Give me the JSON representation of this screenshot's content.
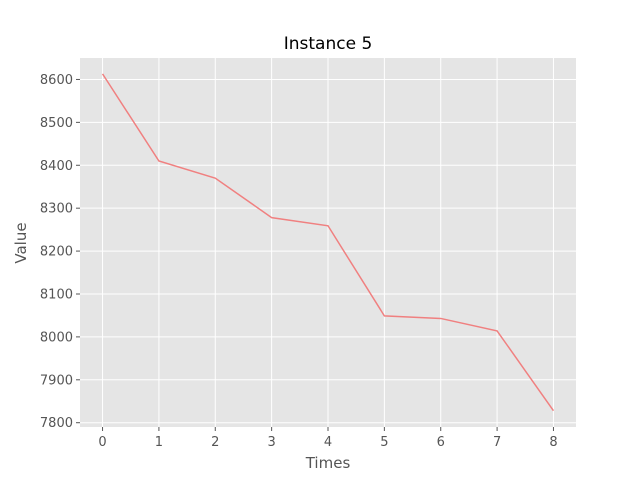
{
  "chart_data": {
    "type": "line",
    "title": "Instance 5",
    "xlabel": "Times",
    "ylabel": "Value",
    "x": [
      0,
      1,
      2,
      3,
      4,
      5,
      6,
      7,
      8
    ],
    "series": [
      {
        "values": [
          8613,
          8410,
          8370,
          8278,
          8259,
          8049,
          8043,
          8014,
          7828
        ]
      }
    ],
    "xlim": [
      -0.4,
      8.4
    ],
    "ylim": [
      7790,
      8650
    ],
    "xticks": [
      0,
      1,
      2,
      3,
      4,
      5,
      6,
      7,
      8
    ],
    "yticks": [
      7800,
      7900,
      8000,
      8100,
      8200,
      8300,
      8400,
      8500,
      8600
    ],
    "grid": true,
    "colors": {
      "background": "#e5e5e5",
      "grid": "#ffffff",
      "line": "#f08080",
      "tick": "#555555"
    }
  }
}
